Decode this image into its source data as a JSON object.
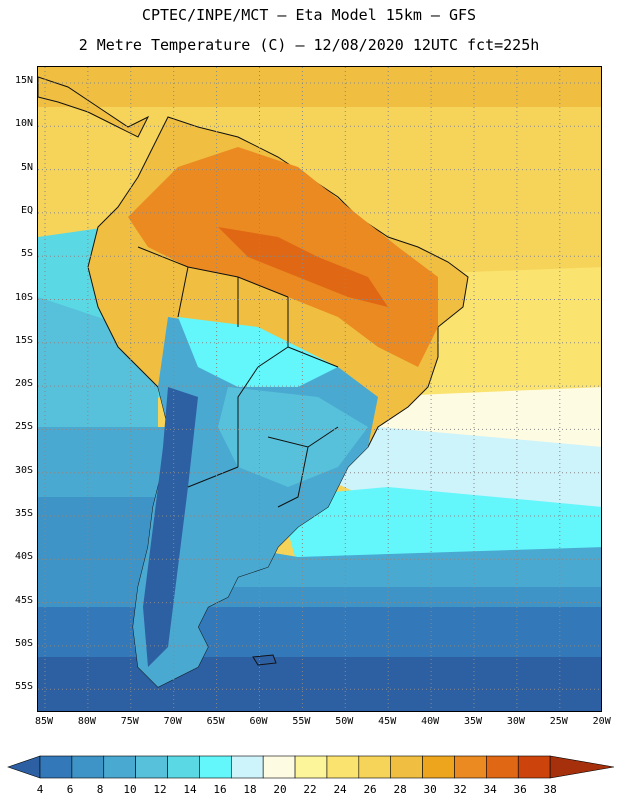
{
  "header": {
    "line1": "CPTEC/INPE/MCT –  Eta Model 15km – GFS",
    "line2": "2 Metre Temperature (C) – 12/08/2020 12UTC fct=225h"
  },
  "map": {
    "lat_labels": [
      "15N",
      "10N",
      "5N",
      "EQ",
      "5S",
      "10S",
      "15S",
      "20S",
      "25S",
      "30S",
      "35S",
      "40S",
      "45S",
      "50S",
      "55S"
    ],
    "lon_labels": [
      "85W",
      "80W",
      "75W",
      "70W",
      "65W",
      "60W",
      "55W",
      "50W",
      "45W",
      "40W",
      "35W",
      "30W",
      "25W",
      "20W"
    ]
  },
  "colorbar": {
    "labels": [
      "4",
      "6",
      "8",
      "10",
      "12",
      "14",
      "16",
      "18",
      "20",
      "22",
      "24",
      "26",
      "28",
      "30",
      "32",
      "34",
      "36",
      "38"
    ],
    "colors": [
      "#2d5fa3",
      "#3378b8",
      "#3e94c6",
      "#4aa9d1",
      "#57c1db",
      "#5ad9e4",
      "#63f6fb",
      "#cdf3fb",
      "#fefbe3",
      "#fdf59a",
      "#fae36f",
      "#f6d45a",
      "#f0bf41",
      "#eda51d",
      "#ea8a21",
      "#e06713",
      "#cc440c",
      "#a5300b"
    ]
  },
  "palette": {
    "ocean_south": "#2d5fa3",
    "ocean_cold": "#3378b8",
    "ocean_cool": "#4aa9d1",
    "ocean_mid": "#57c1db",
    "ocean_cyan": "#63f6fb",
    "ocean_warm": "#fdf59a",
    "ocean_hot": "#f6d45a",
    "ocean_pale": "#fefbe3",
    "land_hot": "#ea8a21",
    "land_veryhot": "#e06713",
    "land_warm": "#f0bf41",
    "land_cold": "#2d5fa3",
    "border": "#111111",
    "grid": "#888888"
  }
}
